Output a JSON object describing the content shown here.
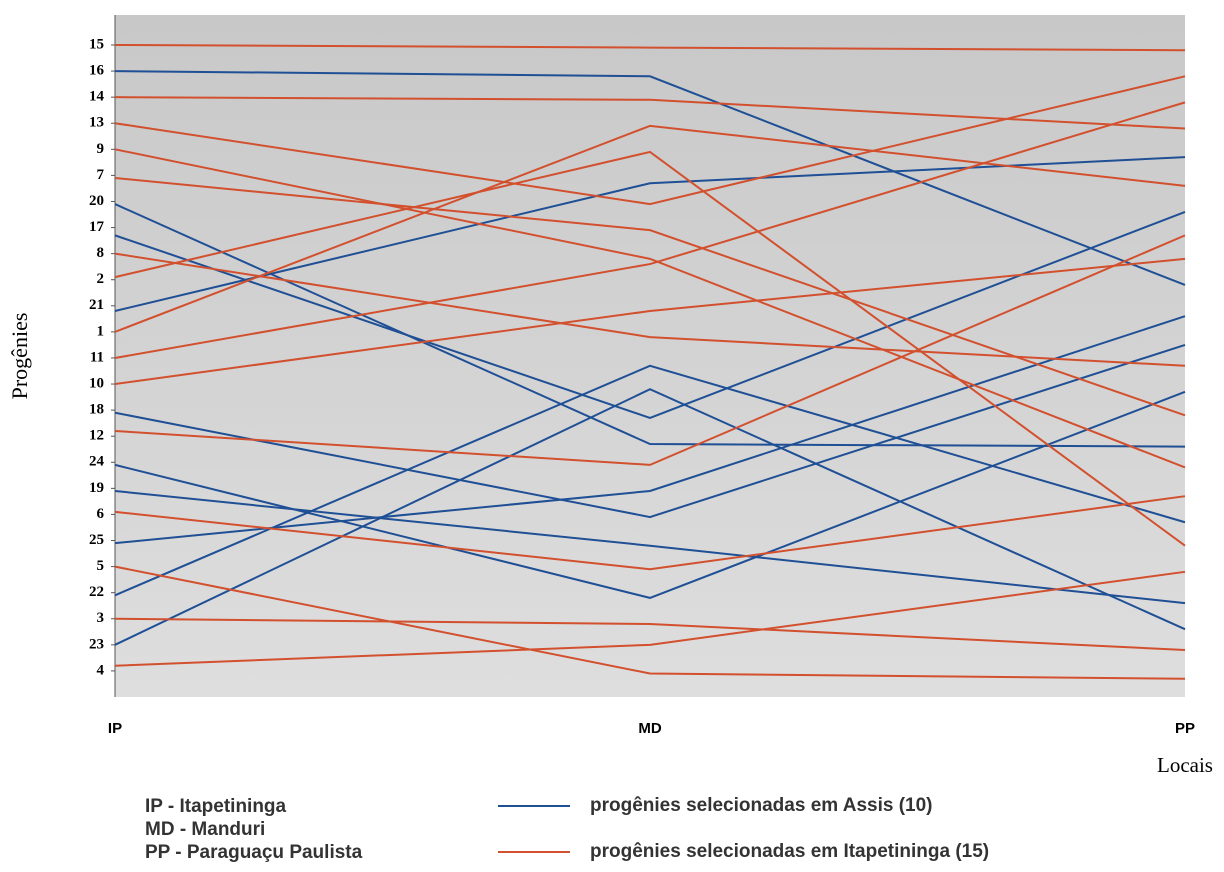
{
  "chart_data": {
    "type": "line",
    "x_label": "Locais",
    "y_label": "Progênies",
    "categories": [
      "IP",
      "MD",
      "PP"
    ],
    "ylim": [
      26,
      -0.15
    ],
    "yticks": [
      {
        "value": 1,
        "label": "15"
      },
      {
        "value": 2,
        "label": "16"
      },
      {
        "value": 3,
        "label": "14"
      },
      {
        "value": 4,
        "label": "13"
      },
      {
        "value": 5,
        "label": "9"
      },
      {
        "value": 6,
        "label": "7"
      },
      {
        "value": 7,
        "label": "20"
      },
      {
        "value": 8,
        "label": "17"
      },
      {
        "value": 9,
        "label": "8"
      },
      {
        "value": 10,
        "label": "2"
      },
      {
        "value": 11,
        "label": "21"
      },
      {
        "value": 12,
        "label": "1"
      },
      {
        "value": 13,
        "label": "11"
      },
      {
        "value": 14,
        "label": "10"
      },
      {
        "value": 15,
        "label": "18"
      },
      {
        "value": 16,
        "label": "12"
      },
      {
        "value": 17,
        "label": "24"
      },
      {
        "value": 18,
        "label": "19"
      },
      {
        "value": 19,
        "label": "6"
      },
      {
        "value": 20,
        "label": "25"
      },
      {
        "value": 21,
        "label": "5"
      },
      {
        "value": 22,
        "label": "22"
      },
      {
        "value": 23,
        "label": "3"
      },
      {
        "value": 24,
        "label": "23"
      },
      {
        "value": 25,
        "label": "4"
      }
    ],
    "series": [
      {
        "color": "#1f4f95",
        "values": [
          2.0,
          2.2,
          10.2
        ]
      },
      {
        "color": "#1f4f95",
        "values": [
          7.1,
          16.3,
          16.4
        ]
      },
      {
        "color": "#1f4f95",
        "values": [
          8.3,
          15.3,
          7.4
        ]
      },
      {
        "color": "#1f4f95",
        "values": [
          11.2,
          6.3,
          5.3
        ]
      },
      {
        "color": "#1f4f95",
        "values": [
          15.1,
          19.1,
          12.5
        ]
      },
      {
        "color": "#1f4f95",
        "values": [
          17.1,
          22.2,
          14.3
        ]
      },
      {
        "color": "#1f4f95",
        "values": [
          18.1,
          20.2,
          22.4
        ]
      },
      {
        "color": "#1f4f95",
        "values": [
          20.1,
          18.1,
          11.4
        ]
      },
      {
        "color": "#1f4f95",
        "values": [
          22.1,
          13.3,
          19.3
        ]
      },
      {
        "color": "#1f4f95",
        "values": [
          24.0,
          14.2,
          23.4
        ]
      },
      {
        "color": "#d2502e",
        "values": [
          1.0,
          1.1,
          1.2
        ]
      },
      {
        "color": "#d2502e",
        "values": [
          3.0,
          3.1,
          4.2
        ]
      },
      {
        "color": "#d2502e",
        "values": [
          4.0,
          7.1,
          2.2
        ]
      },
      {
        "color": "#d2502e",
        "values": [
          5.0,
          9.2,
          17.2
        ]
      },
      {
        "color": "#d2502e",
        "values": [
          6.1,
          8.1,
          15.2
        ]
      },
      {
        "color": "#d2502e",
        "values": [
          9.0,
          12.2,
          13.3
        ]
      },
      {
        "color": "#d2502e",
        "values": [
          9.9,
          5.1,
          20.2
        ]
      },
      {
        "color": "#d2502e",
        "values": [
          12.0,
          4.1,
          6.4
        ]
      },
      {
        "color": "#d2502e",
        "values": [
          13.0,
          9.4,
          3.2
        ]
      },
      {
        "color": "#d2502e",
        "values": [
          14.0,
          11.2,
          9.2
        ]
      },
      {
        "color": "#d2502e",
        "values": [
          15.8,
          17.1,
          8.3
        ]
      },
      {
        "color": "#d2502e",
        "values": [
          18.9,
          21.1,
          18.3
        ]
      },
      {
        "color": "#d2502e",
        "values": [
          21.0,
          25.1,
          25.3
        ]
      },
      {
        "color": "#d2502e",
        "values": [
          23.0,
          23.2,
          24.2
        ]
      },
      {
        "color": "#d2502e",
        "values": [
          24.8,
          24.0,
          21.2
        ]
      }
    ],
    "legend": [
      {
        "label": "progênies selecionadas em Assis (10)",
        "color": "#1f4f95"
      },
      {
        "label": "progênies selecionadas em Itapetininga (15)",
        "color": "#d2502e"
      }
    ],
    "notes": [
      "IP  -  Itapetininga",
      "MD - Manduri",
      "PP  - Paraguaçu Paulista"
    ]
  }
}
